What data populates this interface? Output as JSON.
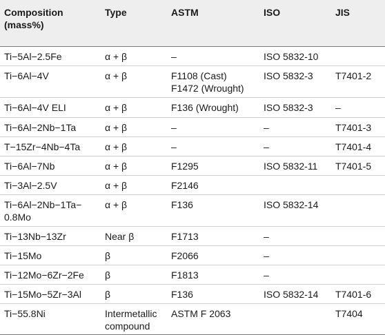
{
  "table": {
    "headers": [
      "Composition\n(mass%)",
      "Type",
      "ASTM",
      "ISO",
      "JIS"
    ],
    "rows": [
      {
        "cells": [
          "Ti−5Al−2.5Fe",
          "α + β",
          "–",
          "ISO 5832-10",
          ""
        ]
      },
      {
        "cells": [
          "Ti−6Al−4V",
          "α + β",
          "F1108 (Cast)\nF1472 (Wrought)",
          "ISO 5832-3",
          "T7401-2"
        ]
      },
      {
        "cells": [
          "Ti−6Al−4V ELI",
          "α + β",
          "F136 (Wrought)",
          "ISO 5832-3",
          "–"
        ]
      },
      {
        "cells": [
          "Ti−6Al−2Nb−1Ta",
          "α + β",
          "–",
          "–",
          "T7401-3"
        ]
      },
      {
        "cells": [
          "T−15Zr−4Nb−4Ta",
          "α + β",
          "–",
          "–",
          "T7401-4"
        ]
      },
      {
        "cells": [
          "Ti−6Al−7Nb",
          "α + β",
          "F1295",
          "ISO 5832-11",
          "T7401-5"
        ]
      },
      {
        "cells": [
          "Ti−3Al−2.5V",
          "α + β",
          "F2146",
          "",
          ""
        ]
      },
      {
        "cells": [
          "Ti−6Al−2Nb−1Ta−\n0.8Mo",
          "α + β",
          "F136",
          "ISO 5832-14",
          ""
        ]
      },
      {
        "cells": [
          "Ti−13Nb−13Zr",
          "Near β",
          "F1713",
          "–",
          ""
        ]
      },
      {
        "cells": [
          "Ti−15Mo",
          "β",
          "F2066",
          "–",
          ""
        ]
      },
      {
        "cells": [
          "Ti−12Mo−6Zr−2Fe",
          "β",
          "F1813",
          "–",
          ""
        ]
      },
      {
        "cells": [
          "Ti−15Mo−5Zr−3Al",
          "β",
          "F136",
          "ISO 5832-14",
          "T7401-6"
        ]
      },
      {
        "cells": [
          "Ti−55.8Ni",
          "Intermetallic\ncompound",
          "ASTM F 2063",
          "",
          "T7404"
        ]
      }
    ]
  }
}
